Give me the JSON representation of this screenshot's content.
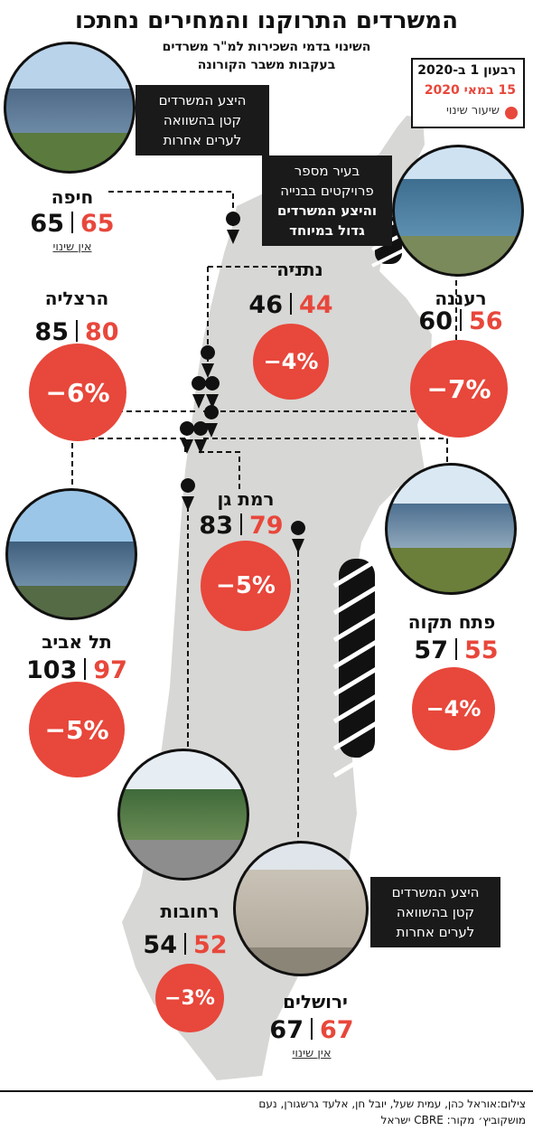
{
  "header": {
    "title": "המשרדים התרוקנו והמחירים נחתכו",
    "subtitle_1": "השינוי בדמי השכירות למ\"ר משרדים",
    "subtitle_2": "בעקבות משבר הקורונה"
  },
  "legend": {
    "line_1": "רבעון 1 ב-2020",
    "line_2": "15 במאי 2020",
    "line_3": "שיעור שינוי",
    "red": "#e8473b"
  },
  "cities": {
    "haifa": {
      "name": "חיפה",
      "before": "65",
      "after": "65",
      "note": "אין שינוי"
    },
    "netanya": {
      "name": "נתניה",
      "before": "46",
      "after": "44",
      "change": "−4%"
    },
    "raanana": {
      "name": "רעננה",
      "before": "60",
      "after": "56",
      "change": "−7%"
    },
    "herzliya": {
      "name": "הרצליה",
      "before": "85",
      "after": "80",
      "change": "−6%"
    },
    "ramat_gan": {
      "name": "רמת גן",
      "before": "83",
      "after": "79",
      "change": "−5%"
    },
    "tel_aviv": {
      "name": "תל אביב",
      "before": "103",
      "after": "97",
      "change": "−5%"
    },
    "petah_tikva": {
      "name": "פתח תקוה",
      "before": "57",
      "after": "55",
      "change": "−4%"
    },
    "rehovot": {
      "name": "רחובות",
      "before": "54",
      "after": "52",
      "change": "−3%"
    },
    "jerusalem": {
      "name": "ירושלים",
      "before": "67",
      "after": "67",
      "note": "אין שינוי"
    }
  },
  "callouts": {
    "haifa_1": "היצע המשרדים",
    "haifa_2": "קטן בהשוואה",
    "haifa_3": "לערים אחרות",
    "raanana_1": "בעיר מספר",
    "raanana_2": "פרויקטים בבנייה",
    "raanana_3": "והיצע המשרדים",
    "raanana_4": "גדול במיוחד",
    "jerusalem_1": "היצע המשרדים",
    "jerusalem_2": "קטן בהשוואה",
    "jerusalem_3": "לערים אחרות"
  },
  "credits": {
    "line_1": "צילום:אוראל כהן, עמית שעל, יובל חן, אלעד גרשגורן, נעם",
    "line_2": "מושקוביץ׳  מקור: CBRE ישראל"
  }
}
